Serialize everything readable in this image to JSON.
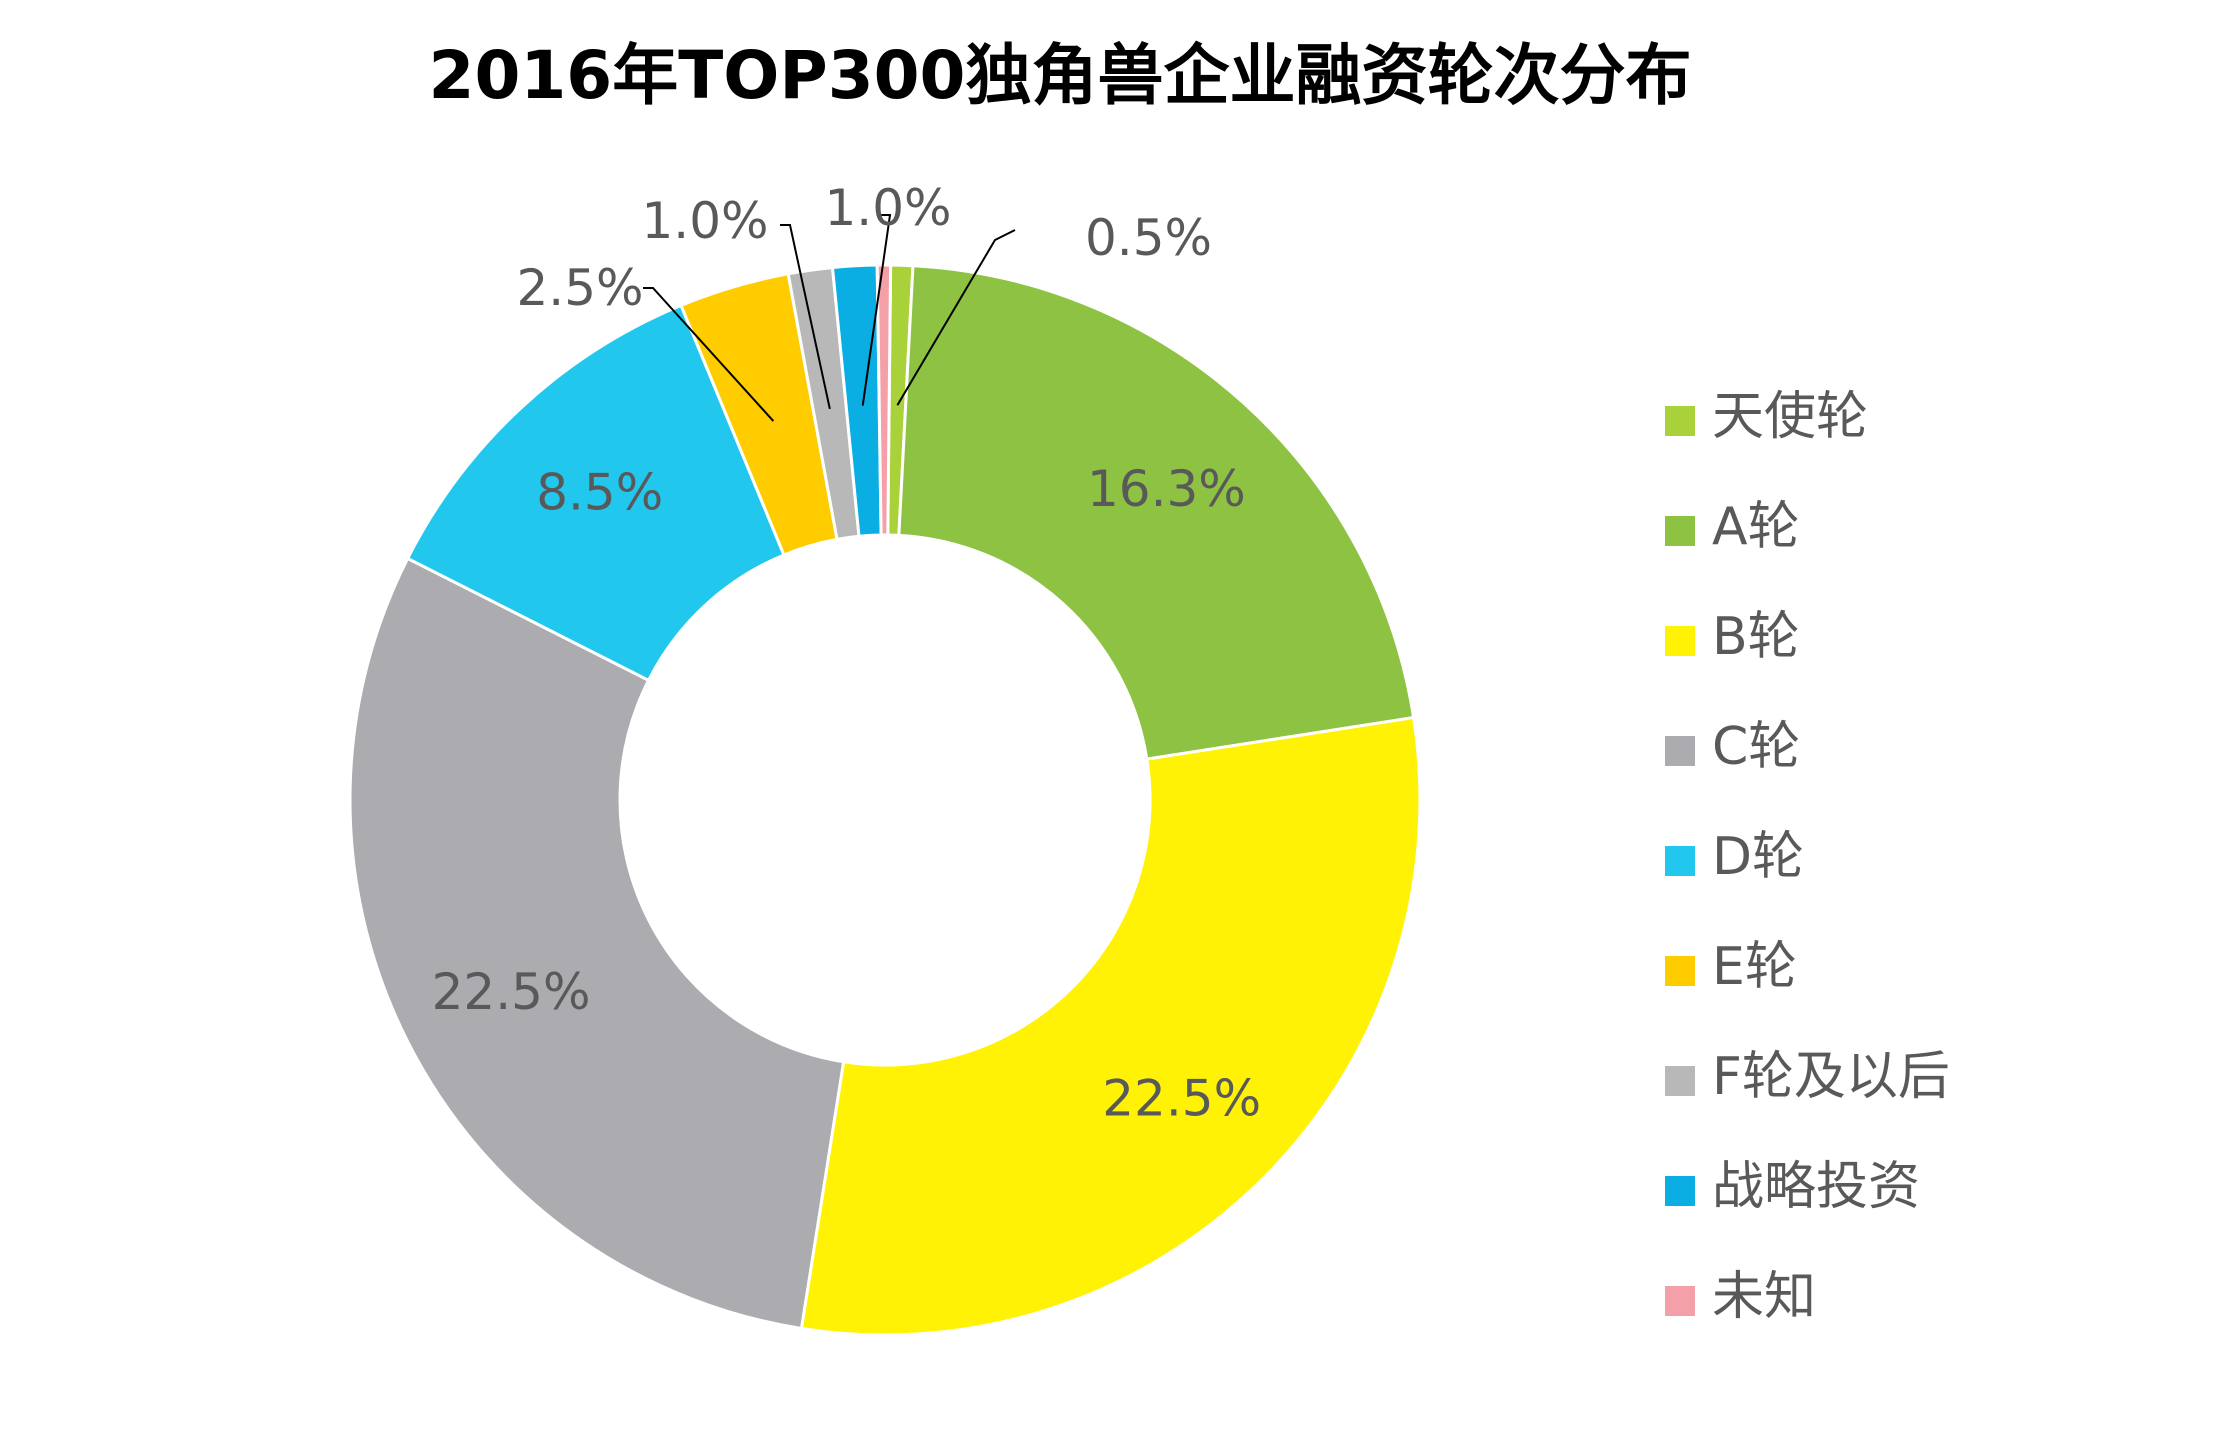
{
  "chart_data": {
    "type": "pie",
    "title": "2016年TOP300独角兽企业融资轮次分布",
    "donut": true,
    "legend_position": "right",
    "slices": [
      {
        "name": "天使轮",
        "value": 0.5,
        "label": "0.5%",
        "color": "#A9D13A"
      },
      {
        "name": "A轮",
        "value": 16.3,
        "label": "16.3%",
        "color": "#8DC243"
      },
      {
        "name": "B轮",
        "value": 22.5,
        "label": "22.5%",
        "color": "#FFF205"
      },
      {
        "name": "C轮",
        "value": 22.5,
        "label": "22.5%",
        "color": "#ABABB0"
      },
      {
        "name": "D轮",
        "value": 8.5,
        "label": "8.5%",
        "color": "#22C7EE"
      },
      {
        "name": "E轮",
        "value": 2.5,
        "label": "2.5%",
        "color": "#FFCC00"
      },
      {
        "name": "F轮及以后",
        "value": 1.0,
        "label": "1.0%",
        "color": "#B8B8B8"
      },
      {
        "name": "战略投资",
        "value": 1.0,
        "label": "1.0%",
        "color": "#0AAEE3"
      },
      {
        "name": "未知",
        "value": 0.3,
        "label": "",
        "color": "#F4A0A8"
      }
    ]
  }
}
